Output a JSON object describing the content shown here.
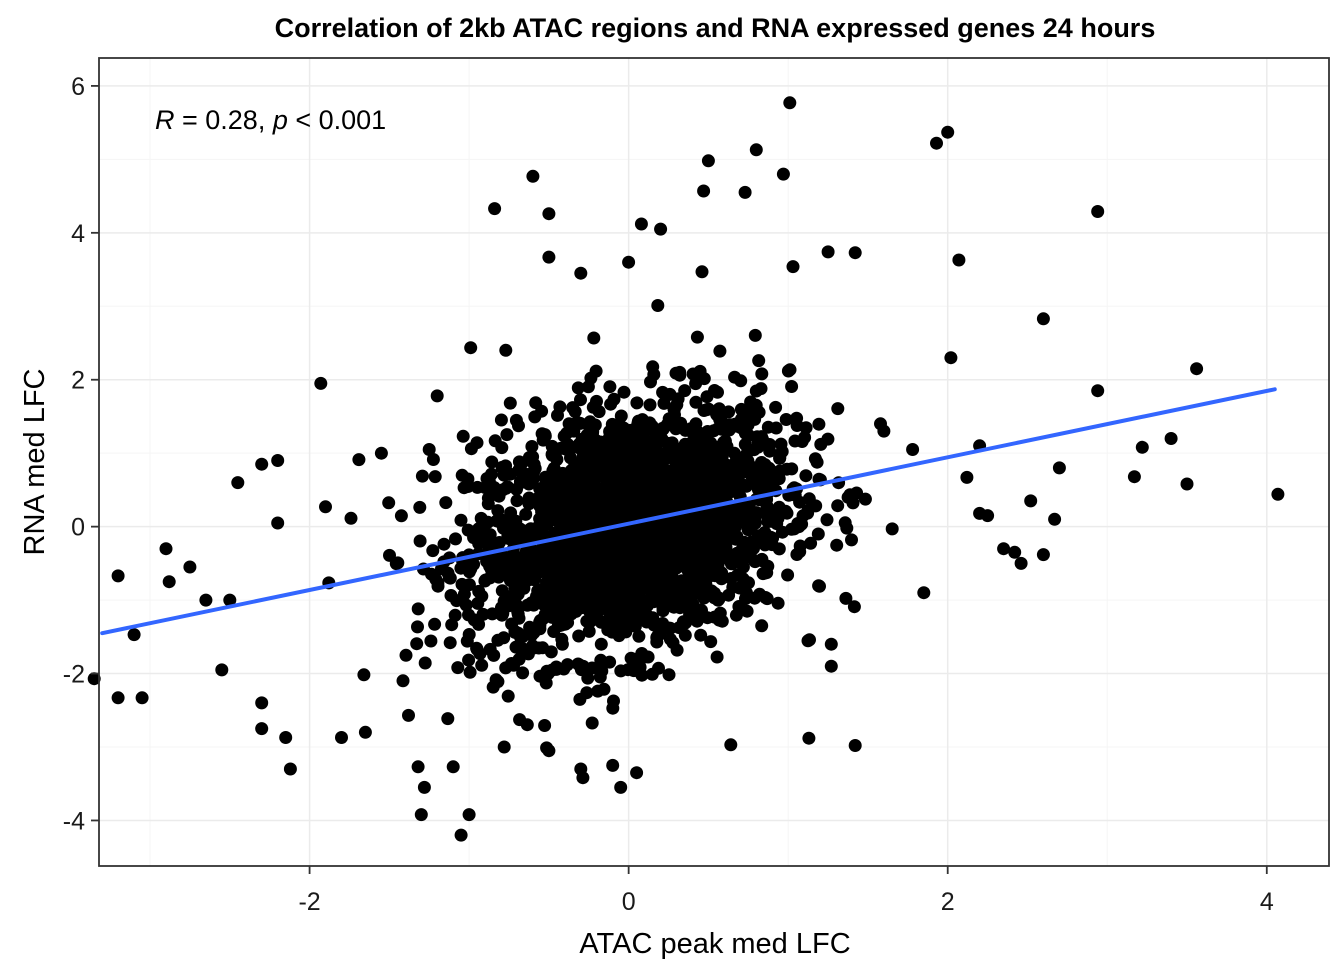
{
  "chart_data": {
    "type": "scatter",
    "title": "Correlation of 2kb ATAC regions and RNA expressed genes 24 hours",
    "xlabel": "ATAC peak med LFC",
    "ylabel": "RNA med LFC",
    "xlim": [
      -3.32,
      4.39
    ],
    "ylim": [
      -4.62,
      6.38
    ],
    "x_ticks": [
      -2,
      0,
      2,
      4
    ],
    "y_ticks": [
      -4,
      -2,
      0,
      2,
      4,
      6
    ],
    "x_tick_labels": [
      "-2",
      "0",
      "2",
      "4"
    ],
    "y_tick_labels": [
      "-4",
      "-2",
      "0",
      "2",
      "4",
      "6"
    ],
    "grid": true,
    "annotation": {
      "r_symbol": "R",
      "r_value": " = 0.28, ",
      "p_symbol": "p",
      "p_value": " < 0.001"
    },
    "point_color": "#000000",
    "fit_color": "#3366FF",
    "fit_line": {
      "x": [
        -3.3,
        4.05
      ],
      "y": [
        -1.45,
        1.87
      ]
    },
    "point_cloud": {
      "center": [
        0.0,
        0.0
      ],
      "sd_x": 0.5,
      "sd_y": 0.85,
      "correlation": 0.28
    },
    "outlier_points": [
      [
        1.01,
        5.77
      ],
      [
        2.0,
        5.37
      ],
      [
        1.93,
        5.22
      ],
      [
        -0.6,
        4.77
      ],
      [
        0.5,
        4.98
      ],
      [
        0.97,
        4.8
      ],
      [
        2.94,
        4.29
      ],
      [
        -0.84,
        4.33
      ],
      [
        -0.5,
        4.26
      ],
      [
        0.47,
        4.57
      ],
      [
        0.73,
        4.55
      ],
      [
        0.08,
        4.12
      ],
      [
        -0.5,
        3.67
      ],
      [
        -0.3,
        3.45
      ],
      [
        0.0,
        3.6
      ],
      [
        0.46,
        3.47
      ],
      [
        1.25,
        3.74
      ],
      [
        1.42,
        3.73
      ],
      [
        1.03,
        3.54
      ],
      [
        2.07,
        3.63
      ],
      [
        2.6,
        2.83
      ],
      [
        3.56,
        2.15
      ],
      [
        2.94,
        1.85
      ],
      [
        -1.93,
        1.95
      ],
      [
        -1.2,
        1.78
      ],
      [
        2.02,
        2.3
      ],
      [
        3.4,
        1.2
      ],
      [
        3.22,
        1.08
      ],
      [
        3.17,
        0.68
      ],
      [
        3.5,
        0.58
      ],
      [
        4.07,
        0.44
      ],
      [
        2.7,
        0.8
      ],
      [
        2.52,
        0.35
      ],
      [
        2.67,
        0.1
      ],
      [
        2.6,
        -0.38
      ],
      [
        2.46,
        -0.5
      ],
      [
        -2.2,
        0.9
      ],
      [
        -2.3,
        0.85
      ],
      [
        -2.45,
        0.6
      ],
      [
        -2.2,
        0.05
      ],
      [
        -2.9,
        -0.3
      ],
      [
        -3.2,
        -0.67
      ],
      [
        -2.75,
        -0.55
      ],
      [
        -2.88,
        -0.75
      ],
      [
        -2.65,
        -1.0
      ],
      [
        -2.5,
        -1.0
      ],
      [
        -3.1,
        -1.47
      ],
      [
        -3.35,
        -2.07
      ],
      [
        -3.2,
        -2.33
      ],
      [
        -3.05,
        -2.33
      ],
      [
        -2.55,
        -1.95
      ],
      [
        -2.3,
        -2.4
      ],
      [
        -2.3,
        -2.75
      ],
      [
        -2.15,
        -2.87
      ],
      [
        -2.12,
        -3.3
      ],
      [
        -1.8,
        -2.87
      ],
      [
        -1.65,
        -2.8
      ],
      [
        -1.38,
        -2.57
      ],
      [
        -1.32,
        -3.27
      ],
      [
        -1.28,
        -3.55
      ],
      [
        -1.3,
        -3.92
      ],
      [
        -1.1,
        -3.27
      ],
      [
        -1.0,
        -3.92
      ],
      [
        -1.05,
        -4.2
      ],
      [
        -0.78,
        -3.0
      ],
      [
        -0.5,
        -3.05
      ],
      [
        -0.3,
        -3.3
      ],
      [
        -0.1,
        -3.25
      ],
      [
        0.05,
        -3.35
      ],
      [
        -0.05,
        -3.55
      ],
      [
        1.13,
        -2.88
      ],
      [
        1.42,
        -2.98
      ],
      [
        0.64,
        -2.97
      ],
      [
        1.27,
        -1.9
      ],
      [
        1.27,
        -1.6
      ],
      [
        0.2,
        4.05
      ],
      [
        -0.77,
        2.4
      ],
      [
        0.8,
        5.13
      ],
      [
        -1.9,
        0.27
      ],
      [
        1.85,
        -0.9
      ],
      [
        1.6,
        1.3
      ],
      [
        1.78,
        1.05
      ],
      [
        2.2,
        1.1
      ],
      [
        2.12,
        0.67
      ],
      [
        2.35,
        -0.3
      ],
      [
        2.42,
        -0.35
      ],
      [
        2.2,
        0.18
      ],
      [
        2.25,
        0.15
      ],
      [
        -1.55,
        1.0
      ],
      [
        -1.25,
        1.05
      ]
    ]
  }
}
